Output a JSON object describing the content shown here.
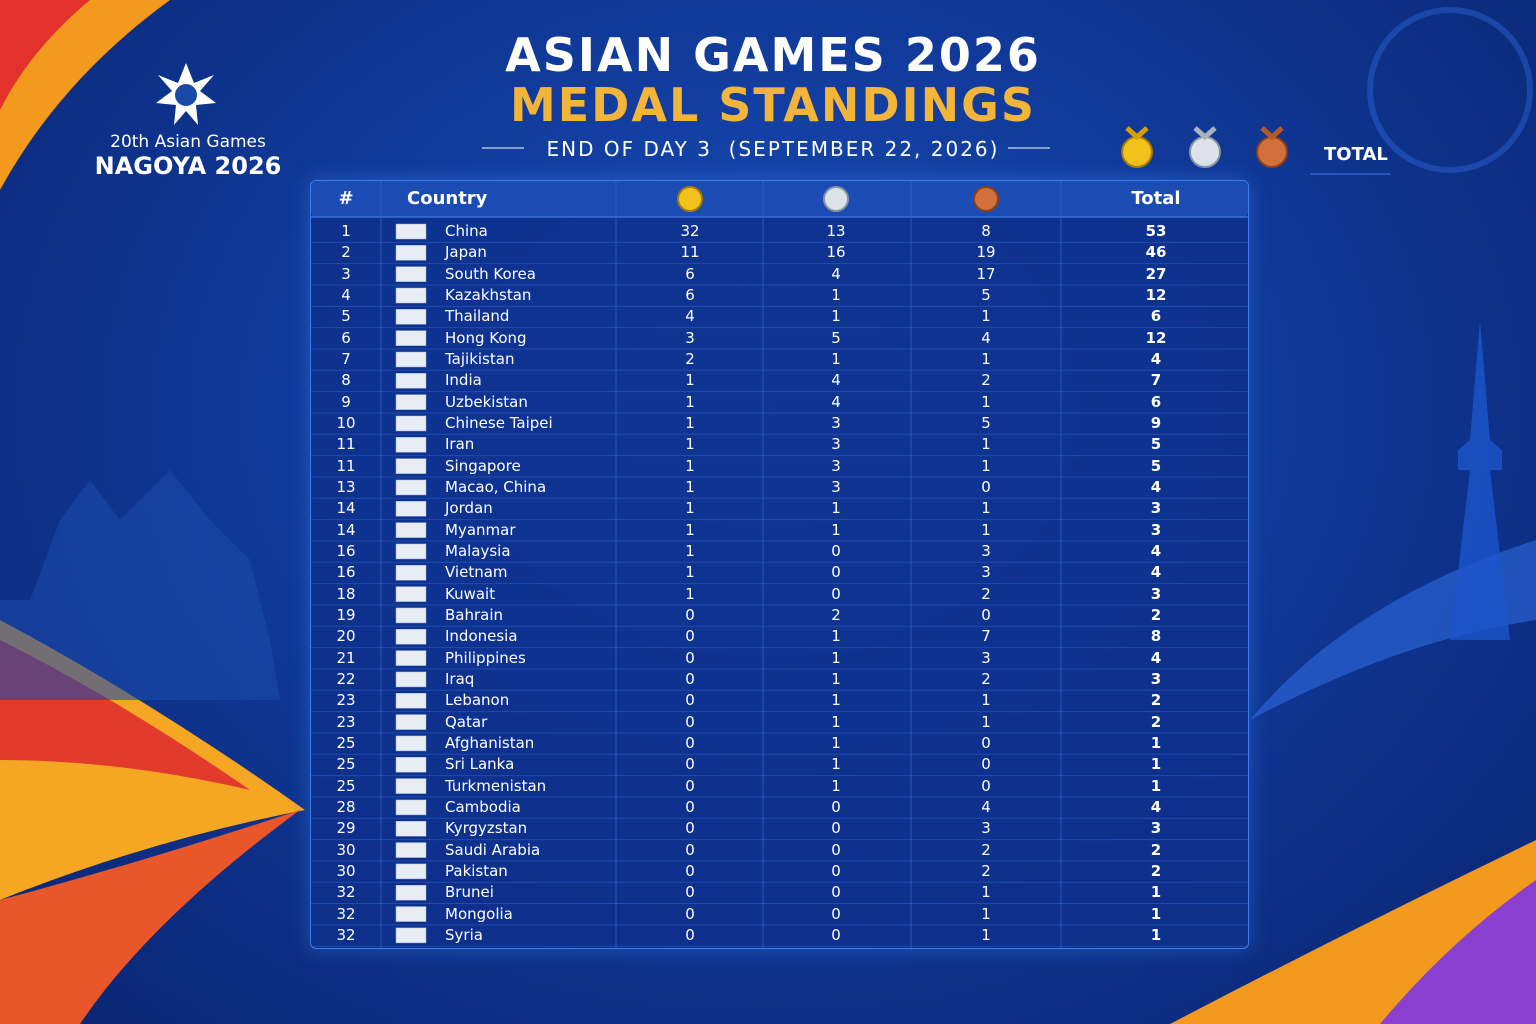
{
  "header": {
    "logo_line1": "20th Asian Games",
    "logo_line2": "NAGOYA 2026",
    "title": "ASIAN GAMES 2026",
    "subtitle": "MEDAL STANDINGS",
    "date": "END OF DAY 3  (SEPTEMBER 22, 2026)",
    "legend_total": "TOTAL"
  },
  "table": {
    "columns": [
      "#",
      "Country",
      "Total"
    ],
    "rows": [
      [
        1,
        "China",
        32,
        13,
        8,
        53
      ],
      [
        2,
        "Japan",
        11,
        16,
        19,
        46
      ],
      [
        3,
        "South Korea",
        6,
        4,
        17,
        27
      ],
      [
        4,
        "Kazakhstan",
        6,
        1,
        5,
        12
      ],
      [
        5,
        "Thailand",
        4,
        1,
        1,
        6
      ],
      [
        6,
        "Hong Kong",
        3,
        5,
        4,
        12
      ],
      [
        7,
        "Tajikistan",
        2,
        1,
        1,
        4
      ],
      [
        8,
        "India",
        1,
        4,
        2,
        7
      ],
      [
        9,
        "Uzbekistan",
        1,
        4,
        1,
        6
      ],
      [
        10,
        "Chinese Taipei",
        1,
        3,
        5,
        9
      ],
      [
        11,
        "Iran",
        1,
        3,
        1,
        5
      ],
      [
        11,
        "Singapore",
        1,
        3,
        1,
        5
      ],
      [
        13,
        "Macao, China",
        1,
        3,
        0,
        4
      ],
      [
        14,
        "Jordan",
        1,
        1,
        1,
        3
      ],
      [
        14,
        "Myanmar",
        1,
        1,
        1,
        3
      ],
      [
        16,
        "Malaysia",
        1,
        0,
        3,
        4
      ],
      [
        16,
        "Vietnam",
        1,
        0,
        3,
        4
      ],
      [
        18,
        "Kuwait",
        1,
        0,
        2,
        3
      ],
      [
        19,
        "Bahrain",
        0,
        2,
        0,
        2
      ],
      [
        20,
        "Indonesia",
        0,
        1,
        7,
        8
      ],
      [
        21,
        "Philippines",
        0,
        1,
        3,
        4
      ],
      [
        22,
        "Iraq",
        0,
        1,
        2,
        3
      ],
      [
        23,
        "Lebanon",
        0,
        1,
        1,
        2
      ],
      [
        23,
        "Qatar",
        0,
        1,
        1,
        2
      ],
      [
        25,
        "Afghanistan",
        0,
        1,
        0,
        1
      ],
      [
        25,
        "Sri Lanka",
        0,
        1,
        0,
        1
      ],
      [
        25,
        "Turkmenistan",
        0,
        1,
        0,
        1
      ],
      [
        28,
        "Cambodia",
        0,
        0,
        4,
        4
      ],
      [
        29,
        "Kyrgyzstan",
        0,
        0,
        3,
        3
      ],
      [
        30,
        "Saudi Arabia",
        0,
        0,
        2,
        2
      ],
      [
        30,
        "Pakistan",
        0,
        0,
        2,
        2
      ],
      [
        32,
        "Brunei",
        0,
        0,
        1,
        1
      ],
      [
        32,
        "Mongolia",
        0,
        0,
        1,
        1
      ],
      [
        32,
        "Syria",
        0,
        0,
        1,
        1
      ]
    ]
  }
}
